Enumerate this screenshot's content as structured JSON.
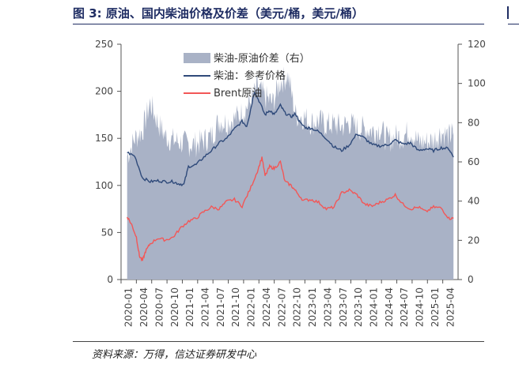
{
  "header": {
    "title": "图 3:  原油、国内柴油价格及价差（美元/桶，美元/桶）"
  },
  "footer": {
    "source": "资料来源：万得，信达证券研发中心"
  },
  "colors": {
    "spread_fill": "#a9b2c6",
    "diesel_line": "#2f4a7a",
    "brent_line": "#f25757",
    "title": "#1f2d63"
  },
  "chart_data": {
    "type": "line",
    "x_ticks": [
      "2020-01",
      "2020-04",
      "2020-07",
      "2020-10",
      "2021-01",
      "2021-04",
      "2021-07",
      "2021-10",
      "2022-01",
      "2022-04",
      "2022-07",
      "2022-10",
      "2023-01",
      "2023-04",
      "2023-07",
      "2023-10",
      "2024-01",
      "2024-04",
      "2024-07",
      "2024-10",
      "2025-01",
      "2025-04"
    ],
    "y_left": {
      "min": 0,
      "max": 250,
      "ticks": [
        0,
        50,
        100,
        150,
        200,
        250
      ]
    },
    "y_right": {
      "min": 0,
      "max": 120,
      "ticks": [
        0,
        20,
        40,
        60,
        80,
        100,
        120
      ]
    },
    "series": [
      {
        "name": "柴油-原油价差（右）",
        "kind": "area",
        "axis": "right",
        "x": [
          0,
          0.5,
          1,
          1.5,
          2,
          2.5,
          3,
          3.5,
          4,
          4.5,
          5,
          5.5,
          6,
          6.5,
          7,
          7.5,
          8,
          8.5,
          9,
          9.5,
          10,
          10.5,
          11,
          11.5,
          12,
          12.5,
          13,
          13.5,
          14,
          14.5,
          15,
          15.5,
          16,
          16.5,
          17,
          17.5,
          18,
          18.5,
          19,
          19.5,
          20,
          20.5,
          21,
          21.3
        ],
        "values": [
          63,
          72,
          76,
          90,
          80,
          73,
          71,
          70,
          69,
          69,
          71,
          73,
          81,
          80,
          82,
          85,
          90,
          98,
          93,
          90,
          101,
          104,
          84,
          83,
          80,
          81,
          79,
          79,
          78,
          80,
          77,
          77,
          76,
          77,
          71,
          73,
          73,
          76,
          70,
          70,
          71,
          75,
          73,
          75
        ]
      },
      {
        "name": "柴油：参考价格",
        "kind": "line",
        "axis": "left",
        "x": [
          0,
          0.5,
          1,
          1.5,
          2,
          2.5,
          3,
          3.3,
          3.7,
          4,
          4.5,
          5,
          5.5,
          6,
          6.5,
          7,
          7.5,
          7.8,
          8,
          8.3,
          8.6,
          9,
          9.3,
          9.6,
          10,
          10.3,
          10.7,
          11,
          11.3,
          11.7,
          12,
          12.5,
          13,
          13.5,
          14,
          14.5,
          15,
          15.5,
          16,
          16.5,
          17,
          17.5,
          18,
          18.5,
          19,
          19.5,
          20,
          20.5,
          21,
          21.3
        ],
        "values": [
          135,
          131,
          108,
          104,
          105,
          104,
          104,
          102,
          101,
          120,
          122,
          130,
          137,
          145,
          150,
          160,
          168,
          163,
          176,
          200,
          190,
          175,
          180,
          175,
          185,
          177,
          173,
          176,
          166,
          161,
          161,
          157,
          150,
          141,
          137,
          143,
          155,
          150,
          143,
          142,
          143,
          148,
          144,
          145,
          137,
          139,
          137,
          140,
          139,
          130
        ]
      },
      {
        "name": "Brent原油",
        "kind": "line",
        "axis": "left",
        "x": [
          0,
          0.3,
          0.6,
          0.8,
          1,
          1.2,
          1.5,
          2,
          2.5,
          3,
          3.5,
          4,
          4.5,
          5,
          5.5,
          6,
          6.5,
          7,
          7.5,
          8,
          8.5,
          8.8,
          9,
          9.3,
          9.6,
          10,
          10.3,
          10.7,
          11,
          11.5,
          12,
          12.5,
          13,
          13.5,
          14,
          14.5,
          15,
          15.5,
          16,
          16.5,
          17,
          17.5,
          18,
          18.5,
          19,
          19.5,
          20,
          20.5,
          21,
          21.3
        ],
        "values": [
          67,
          58,
          45,
          25,
          20,
          30,
          38,
          44,
          42,
          45,
          55,
          62,
          65,
          72,
          77,
          75,
          83,
          85,
          78,
          95,
          115,
          130,
          110,
          120,
          118,
          125,
          104,
          100,
          94,
          84,
          85,
          82,
          75,
          77,
          92,
          95,
          90,
          80,
          78,
          82,
          85,
          90,
          80,
          75,
          77,
          72,
          77,
          76,
          65,
          65
        ]
      }
    ]
  }
}
